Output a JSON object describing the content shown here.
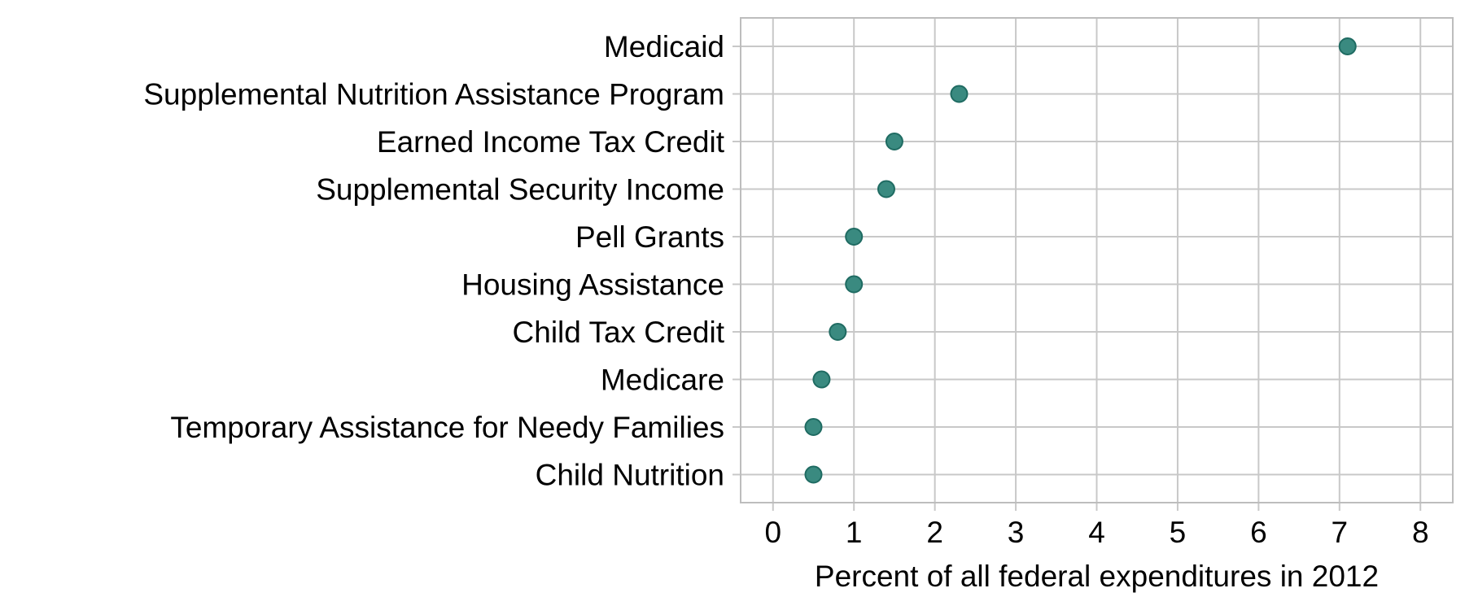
{
  "chart_data": {
    "type": "scatter",
    "title": "",
    "xlabel": "Percent of all federal expenditures in 2012",
    "ylabel": "",
    "xlim": [
      -0.4,
      8.4
    ],
    "x_ticks": [
      0,
      1,
      2,
      3,
      4,
      5,
      6,
      7,
      8
    ],
    "grid": true,
    "legend": "none",
    "marker_color": "#3a8a80",
    "marker_edge_color": "#1f6b62",
    "grid_color": "#c8c8c8",
    "frame_color": "#bdbdbd",
    "categories": [
      "Medicaid",
      "Supplemental Nutrition Assistance Program",
      "Earned Income Tax Credit",
      "Supplemental Security Income",
      "Pell Grants",
      "Housing Assistance",
      "Child Tax Credit",
      "Medicare",
      "Temporary Assistance for Needy Families",
      "Child Nutrition"
    ],
    "values": [
      7.1,
      2.3,
      1.5,
      1.4,
      1.0,
      1.0,
      0.8,
      0.6,
      0.5,
      0.5
    ]
  }
}
